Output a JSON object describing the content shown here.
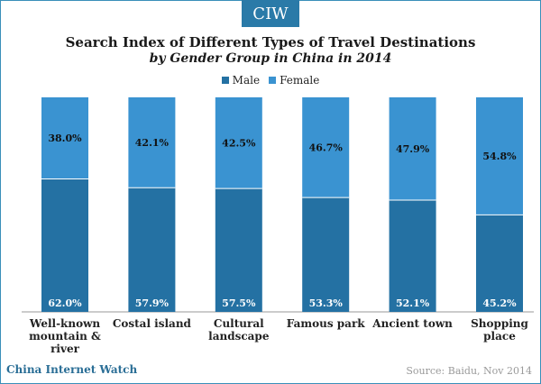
{
  "brand": {
    "badge": "CIW",
    "footer": "China Internet Watch"
  },
  "title": {
    "line1": "Search Index of Different Types of  Travel Destinations",
    "line2": "by Gender Group in China in 2014"
  },
  "source": "Source: Baidu, Nov 2014",
  "colors": {
    "male": "#2471a3",
    "female": "#3a93d1",
    "brand": "#2a7aa8"
  },
  "chart_data": {
    "type": "bar",
    "stacked": true,
    "title": "Search Index of Different Types of  Travel Destinations by Gender Group in China in 2014",
    "categories": [
      "Well-known mountain & river",
      "Costal island",
      "Cultural landscape",
      "Famous park",
      "Ancient town",
      "Shopping place"
    ],
    "series": [
      {
        "name": "Male",
        "values": [
          62.0,
          57.9,
          57.5,
          53.3,
          52.1,
          45.2
        ],
        "labels": [
          "62.0%",
          "57.9%",
          "57.5%",
          "53.3%",
          "52.1%",
          "45.2%"
        ]
      },
      {
        "name": "Female",
        "values": [
          38.0,
          42.1,
          42.5,
          46.7,
          47.9,
          54.8
        ],
        "labels": [
          "38.0%",
          "42.1%",
          "42.5%",
          "46.7%",
          "47.9%",
          "54.8%"
        ]
      }
    ],
    "ylim": [
      0,
      100
    ],
    "grid": false,
    "legend": "top-center"
  }
}
